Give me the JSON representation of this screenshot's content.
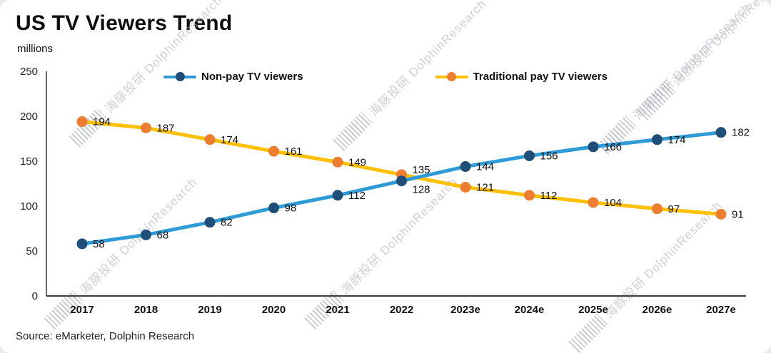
{
  "title": "US TV Viewers Trend",
  "subtitle": "millions",
  "source": "Source: eMarketer, Dolphin Research",
  "watermark": "海豚投研 DolphinResearch",
  "chart_data": {
    "type": "line",
    "title": "US TV Viewers Trend",
    "units": "millions",
    "categories": [
      "2017",
      "2018",
      "2019",
      "2020",
      "2021",
      "2022",
      "2023e",
      "2024e",
      "2025e",
      "2026e",
      "2027e"
    ],
    "series": [
      {
        "name": "Non-pay TV viewers",
        "values": [
          58,
          68,
          82,
          98,
          112,
          128,
          144,
          156,
          166,
          174,
          182
        ],
        "line_color": "#2E9BD6",
        "marker_color": "#1F4E79"
      },
      {
        "name": "Traditional pay TV viewers",
        "values": [
          194,
          187,
          174,
          161,
          149,
          135,
          121,
          112,
          104,
          97,
          91
        ],
        "line_color": "#FFC000",
        "marker_color": "#ED7D31"
      }
    ],
    "ylim": [
      0,
      250
    ],
    "yticks": [
      0,
      50,
      100,
      150,
      200,
      250
    ],
    "grid": false,
    "legend_position": "top-center",
    "data_labels": true
  }
}
